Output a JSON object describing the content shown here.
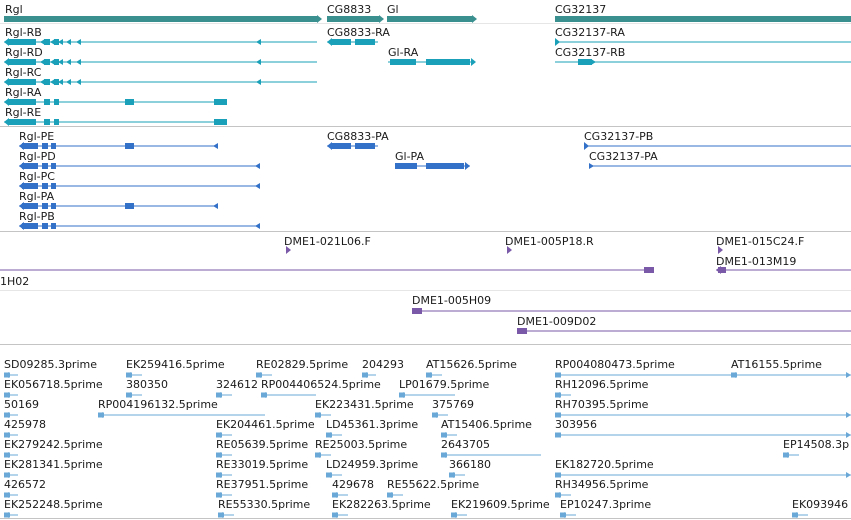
{
  "track_colors": {
    "gene": "#3a8f8f",
    "transcript": "#1aa0b8",
    "protein": "#3370c8",
    "clone": "#7a5aa8",
    "est": "#6aa8d8",
    "divider": "#c4c4c4"
  },
  "tracks": {
    "genes": [
      {
        "id": "rgl",
        "label": "Rgl"
      },
      {
        "id": "cg8833",
        "label": "CG8833"
      },
      {
        "id": "gi",
        "label": "Gl"
      },
      {
        "id": "cg32137",
        "label": "CG32137"
      }
    ],
    "transcripts": [
      {
        "id": "rgl-rb",
        "label": "Rgl-RB"
      },
      {
        "id": "rgl-rd",
        "label": "Rgl-RD"
      },
      {
        "id": "rgl-rc",
        "label": "Rgl-RC"
      },
      {
        "id": "rgl-ra",
        "label": "Rgl-RA"
      },
      {
        "id": "rgl-re",
        "label": "Rgl-RE"
      },
      {
        "id": "cg8833-ra",
        "label": "CG8833-RA"
      },
      {
        "id": "gi-ra",
        "label": "Gl-RA"
      },
      {
        "id": "cg32137-ra",
        "label": "CG32137-RA"
      },
      {
        "id": "cg32137-rb",
        "label": "CG32137-RB"
      }
    ],
    "proteins": [
      {
        "id": "rgl-pe",
        "label": "Rgl-PE"
      },
      {
        "id": "rgl-pd",
        "label": "Rgl-PD"
      },
      {
        "id": "rgl-pc",
        "label": "Rgl-PC"
      },
      {
        "id": "rgl-pa",
        "label": "Rgl-PA"
      },
      {
        "id": "rgl-pb",
        "label": "Rgl-PB"
      },
      {
        "id": "cg8833-pa",
        "label": "CG8833-PA"
      },
      {
        "id": "gi-pa",
        "label": "Gl-PA"
      },
      {
        "id": "cg32137-pb",
        "label": "CG32137-PB"
      },
      {
        "id": "cg32137-pa",
        "label": "CG32137-PA"
      }
    ],
    "clones": [
      {
        "id": "dme1-021l06",
        "label": "DME1-021L06.F"
      },
      {
        "id": "dme1-005p18",
        "label": "DME1-005P18.R"
      },
      {
        "id": "dme1-015c24",
        "label": "DME1-015C24.F"
      },
      {
        "id": "dme1-013m19",
        "label": "DME1-013M19"
      },
      {
        "id": "1h02",
        "label": "1H02"
      },
      {
        "id": "dme1-005h09",
        "label": "DME1-005H09"
      },
      {
        "id": "dme1-009d02",
        "label": "DME1-009D02"
      }
    ],
    "ests": [
      {
        "id": "e1",
        "label": "SD09285.3prime"
      },
      {
        "id": "e2",
        "label": "EK259416.5prime"
      },
      {
        "id": "e3",
        "label": "RE02829.5prime"
      },
      {
        "id": "e4",
        "label": "204293"
      },
      {
        "id": "e5",
        "label": "AT15626.5prime"
      },
      {
        "id": "e6",
        "label": "RP004080473.5prime"
      },
      {
        "id": "e7",
        "label": "AT16155.5prime"
      },
      {
        "id": "e8",
        "label": "EK056718.5prime"
      },
      {
        "id": "e9",
        "label": "380350"
      },
      {
        "id": "e10",
        "label": "324612"
      },
      {
        "id": "e11",
        "label": "RP004406524.5prime"
      },
      {
        "id": "e12",
        "label": "LP01679.5prime"
      },
      {
        "id": "e13",
        "label": "RH12096.5prime"
      },
      {
        "id": "e14",
        "label": "50169"
      },
      {
        "id": "e15",
        "label": "RP004196132.5prime"
      },
      {
        "id": "e16",
        "label": "EK223431.5prime"
      },
      {
        "id": "e17",
        "label": "375769"
      },
      {
        "id": "e18",
        "label": "RH70395.5prime"
      },
      {
        "id": "e19",
        "label": "425978"
      },
      {
        "id": "e20",
        "label": "EK204461.5prime"
      },
      {
        "id": "e21",
        "label": "LD45361.3prime"
      },
      {
        "id": "e22",
        "label": "AT15406.5prime"
      },
      {
        "id": "e23",
        "label": "303956"
      },
      {
        "id": "e24",
        "label": "EK279242.5prime"
      },
      {
        "id": "e25",
        "label": "RE05639.5prime"
      },
      {
        "id": "e26",
        "label": "RE25003.5prime"
      },
      {
        "id": "e27",
        "label": "2643705"
      },
      {
        "id": "e28",
        "label": "EP14508.3p"
      },
      {
        "id": "e29",
        "label": "EK281341.5prime"
      },
      {
        "id": "e30",
        "label": "RE33019.5prime"
      },
      {
        "id": "e31",
        "label": "LD24959.3prime"
      },
      {
        "id": "e32",
        "label": "366180"
      },
      {
        "id": "e33",
        "label": "EK182720.5prime"
      },
      {
        "id": "e34",
        "label": "426572"
      },
      {
        "id": "e35",
        "label": "RE37951.5prime"
      },
      {
        "id": "e36",
        "label": "429678"
      },
      {
        "id": "e37",
        "label": "RE55622.5prime"
      },
      {
        "id": "e38",
        "label": "RH34956.5prime"
      },
      {
        "id": "e39",
        "label": "EK252248.5prime"
      },
      {
        "id": "e40",
        "label": "RE55330.5prime"
      },
      {
        "id": "e41",
        "label": "EK282263.5prime"
      },
      {
        "id": "e42",
        "label": "EK219609.5prime"
      },
      {
        "id": "e43",
        "label": "EP10247.3prime"
      },
      {
        "id": "e44",
        "label": "EK093946"
      }
    ]
  }
}
